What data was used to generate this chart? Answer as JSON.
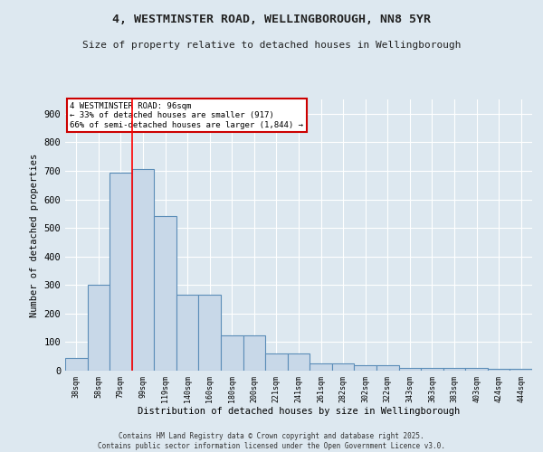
{
  "title": "4, WESTMINSTER ROAD, WELLINGBOROUGH, NN8 5YR",
  "subtitle": "Size of property relative to detached houses in Wellingborough",
  "xlabel": "Distribution of detached houses by size in Wellingborough",
  "ylabel": "Number of detached properties",
  "categories": [
    "38sqm",
    "58sqm",
    "79sqm",
    "99sqm",
    "119sqm",
    "140sqm",
    "160sqm",
    "180sqm",
    "200sqm",
    "221sqm",
    "241sqm",
    "261sqm",
    "282sqm",
    "302sqm",
    "322sqm",
    "343sqm",
    "363sqm",
    "383sqm",
    "403sqm",
    "424sqm",
    "444sqm"
  ],
  "values": [
    45,
    300,
    695,
    705,
    540,
    265,
    265,
    125,
    125,
    60,
    60,
    25,
    25,
    20,
    20,
    10,
    10,
    10,
    10,
    5,
    5
  ],
  "bar_color": "#c8d8e8",
  "bar_edge_color": "#5b8db8",
  "red_line_x": 2.5,
  "annotation_text": "4 WESTMINSTER ROAD: 96sqm\n← 33% of detached houses are smaller (917)\n66% of semi-detached houses are larger (1,844) →",
  "annotation_box_color": "#ffffff",
  "annotation_box_edge": "#cc0000",
  "footnote": "Contains HM Land Registry data © Crown copyright and database right 2025.\nContains public sector information licensed under the Open Government Licence v3.0.",
  "bg_color": "#dde8f0",
  "ylim": [
    0,
    950
  ],
  "yticks": [
    0,
    100,
    200,
    300,
    400,
    500,
    600,
    700,
    800,
    900
  ]
}
